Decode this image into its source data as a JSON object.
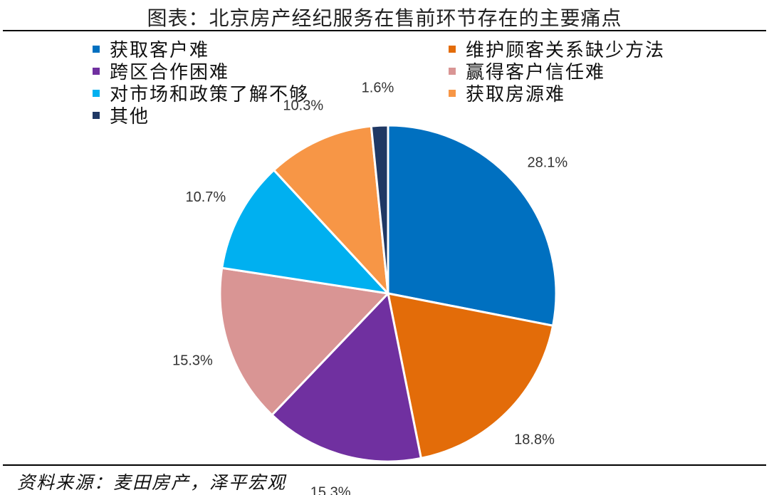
{
  "figure": {
    "title": "图表：北京房产经纪服务在售前环节存在的主要痛点",
    "source": "资料来源：麦田房产，泽平宏观"
  },
  "chart_data": {
    "type": "pie",
    "title": "图表：北京房产经纪服务在售前环节存在的主要痛点",
    "legend_position": "top",
    "slices": [
      {
        "name": "获取客户难",
        "value": 28.1,
        "label": "28.1%",
        "color": "#0070C0"
      },
      {
        "name": "维护顾客关系缺少方法",
        "value": 18.8,
        "label": "18.8%",
        "color": "#E36C09"
      },
      {
        "name": "跨区合作困难",
        "value": 15.3,
        "label": "15.3%",
        "color": "#7030A0"
      },
      {
        "name": "赢得客户信任难",
        "value": 15.3,
        "label": "15.3%",
        "color": "#D99594"
      },
      {
        "name": "对市场和政策了解不够",
        "value": 10.7,
        "label": "10.7%",
        "color": "#00B0F0"
      },
      {
        "name": "获取房源难",
        "value": 10.3,
        "label": "10.3%",
        "color": "#F79646"
      },
      {
        "name": "其他",
        "value": 1.6,
        "label": "1.6%",
        "color": "#1F3864"
      }
    ]
  }
}
